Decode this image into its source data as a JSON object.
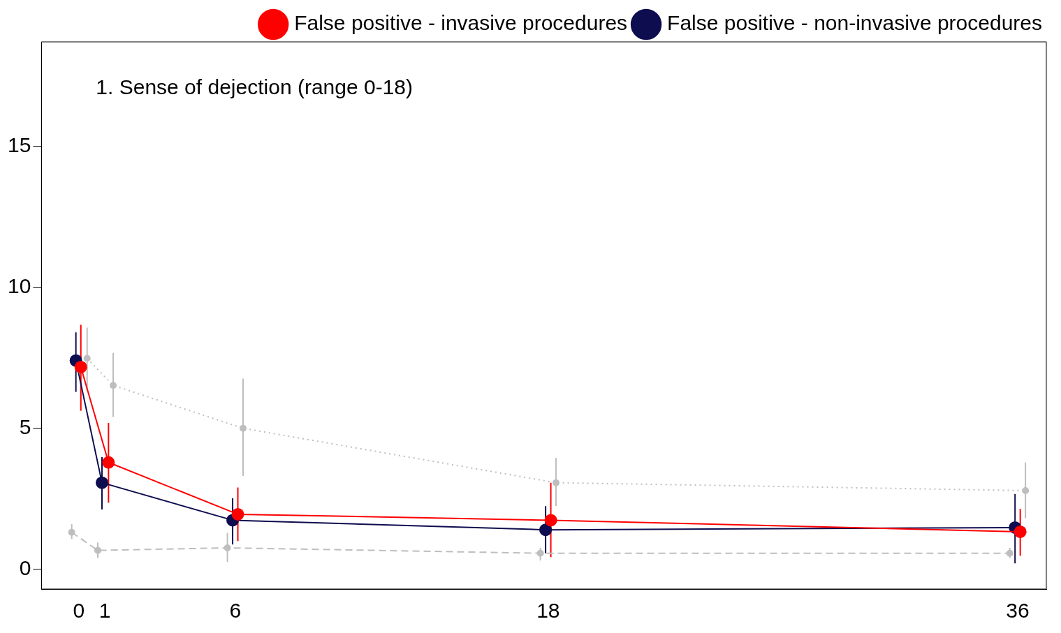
{
  "chart_data": {
    "type": "line",
    "title": "1. Sense of dejection (range 0-18)",
    "xlim": [
      -1.43,
      37.1
    ],
    "xticks": [
      0,
      1,
      6,
      18,
      36
    ],
    "ylim": [
      -0.7,
      18.7
    ],
    "yticks": [
      0,
      5,
      10,
      15
    ],
    "grid": false,
    "legend": "top right",
    "marker": "circle",
    "series": [
      {
        "name": "False positive - invasive procedures",
        "color": "#ff0000",
        "line_style": "solid",
        "x": [
          0.08,
          1.14,
          6.1,
          18.1,
          36.1
        ],
        "values": [
          7.17,
          3.79,
          1.95,
          1.74,
          1.33
        ],
        "errors": [
          [
            5.62,
            8.67
          ],
          [
            2.36,
            5.19
          ],
          [
            1.0,
            2.9
          ],
          [
            0.43,
            3.07
          ],
          [
            0.48,
            2.14
          ]
        ]
      },
      {
        "name": "False positive - non-invasive procedures",
        "color": "#0d0d4f",
        "line_style": "solid",
        "x": [
          -0.11,
          0.89,
          5.9,
          17.9,
          35.9
        ],
        "values": [
          7.4,
          3.07,
          1.74,
          1.4,
          1.48
        ],
        "errors": [
          [
            6.29,
            8.4
          ],
          [
            2.12,
            3.98
          ],
          [
            0.88,
            2.52
          ],
          [
            0.57,
            2.24
          ],
          [
            0.21,
            2.67
          ]
        ]
      },
      {
        "color": "#bebebe",
        "line_style": "dotted",
        "x": [
          0.32,
          1.32,
          6.3,
          18.3,
          36.3
        ],
        "values": [
          7.48,
          6.52,
          5.0,
          3.07,
          2.79
        ],
        "errors": [
          [
            6.33,
            8.57
          ],
          [
            5.4,
            7.67
          ],
          [
            3.31,
            6.76
          ],
          [
            2.24,
            3.95
          ],
          [
            1.81,
            3.79
          ]
        ]
      },
      {
        "color": "#bebebe",
        "line_style": "dashed",
        "x": [
          -0.27,
          0.73,
          5.7,
          17.7,
          35.7
        ],
        "values": [
          1.31,
          0.67,
          0.76,
          0.57,
          0.57
        ],
        "errors": [
          [
            1.07,
            1.6
          ],
          [
            0.4,
            0.95
          ],
          [
            0.26,
            1.29
          ],
          [
            0.31,
            0.76
          ],
          [
            0.4,
            0.76
          ]
        ]
      }
    ]
  }
}
